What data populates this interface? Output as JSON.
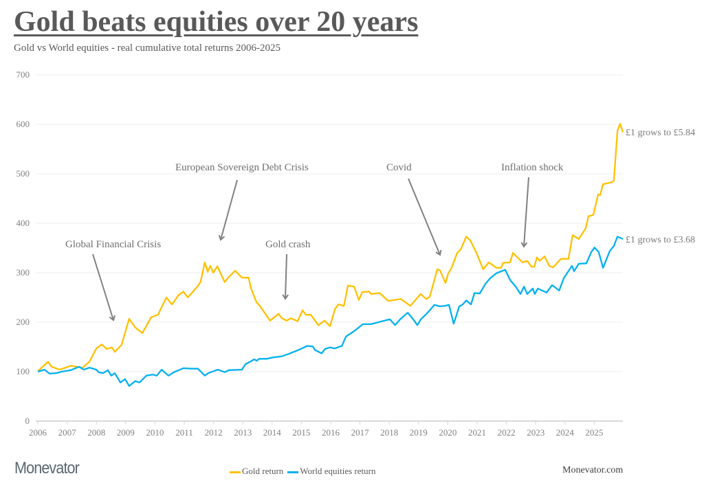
{
  "header": {
    "title": "Gold beats equities over 20 years",
    "subtitle": "Gold vs World equities - real cumulative total returns 2006-2025"
  },
  "footer": {
    "logo": "Monevator",
    "site": "Monevator.com"
  },
  "chart_data": {
    "type": "line",
    "title": "Gold beats equities over 20 years",
    "subtitle": "Gold vs World equities - real cumulative total returns 2006-2025",
    "xlabel": "",
    "ylabel": "",
    "xlim": [
      2006,
      2026
    ],
    "ylim": [
      0,
      700
    ],
    "x_ticks": [
      "2006",
      "2007",
      "2008",
      "2009",
      "2010",
      "2011",
      "2012",
      "2013",
      "2014",
      "2015",
      "2016",
      "2017",
      "2018",
      "2019",
      "2020",
      "2021",
      "2022",
      "2023",
      "2024",
      "2025"
    ],
    "y_ticks": [
      "0",
      "100",
      "200",
      "300",
      "400",
      "500",
      "600",
      "700"
    ],
    "grid": "horizontal",
    "legend_position": "bottom",
    "series": [
      {
        "name": "Gold return",
        "color": "#FFC000",
        "end_label": "£1 grows to £5.84",
        "points": [
          [
            2006.0,
            101
          ],
          [
            2006.35,
            120
          ],
          [
            2006.47,
            110
          ],
          [
            2006.75,
            104
          ],
          [
            2007.13,
            112
          ],
          [
            2007.53,
            108
          ],
          [
            2007.76,
            120
          ],
          [
            2008.0,
            147
          ],
          [
            2008.18,
            155
          ],
          [
            2008.35,
            146
          ],
          [
            2008.53,
            149
          ],
          [
            2008.63,
            140
          ],
          [
            2008.86,
            154
          ],
          [
            2009.12,
            207
          ],
          [
            2009.33,
            189
          ],
          [
            2009.57,
            178
          ],
          [
            2009.87,
            210
          ],
          [
            2010.1,
            215
          ],
          [
            2010.39,
            250
          ],
          [
            2010.58,
            236
          ],
          [
            2010.81,
            255
          ],
          [
            2010.97,
            262
          ],
          [
            2011.12,
            250
          ],
          [
            2011.45,
            272
          ],
          [
            2011.56,
            282
          ],
          [
            2011.7,
            321
          ],
          [
            2011.8,
            302
          ],
          [
            2011.89,
            314
          ],
          [
            2011.99,
            300
          ],
          [
            2012.13,
            313
          ],
          [
            2012.38,
            281
          ],
          [
            2012.5,
            290
          ],
          [
            2012.74,
            304
          ],
          [
            2012.97,
            290
          ],
          [
            2013.2,
            290
          ],
          [
            2013.28,
            268
          ],
          [
            2013.47,
            240
          ],
          [
            2013.58,
            233
          ],
          [
            2013.93,
            203
          ],
          [
            2014.22,
            217
          ],
          [
            2014.33,
            208
          ],
          [
            2014.5,
            203
          ],
          [
            2014.64,
            208
          ],
          [
            2014.87,
            202
          ],
          [
            2015.04,
            224
          ],
          [
            2015.15,
            215
          ],
          [
            2015.32,
            215
          ],
          [
            2015.58,
            194
          ],
          [
            2015.79,
            203
          ],
          [
            2015.98,
            192
          ],
          [
            2016.14,
            226
          ],
          [
            2016.26,
            236
          ],
          [
            2016.45,
            233
          ],
          [
            2016.59,
            274
          ],
          [
            2016.8,
            272
          ],
          [
            2016.96,
            245
          ],
          [
            2017.08,
            261
          ],
          [
            2017.31,
            262
          ],
          [
            2017.38,
            257
          ],
          [
            2017.67,
            259
          ],
          [
            2017.97,
            243
          ],
          [
            2018.39,
            247
          ],
          [
            2018.72,
            233
          ],
          [
            2019.07,
            257
          ],
          [
            2019.26,
            247
          ],
          [
            2019.38,
            251
          ],
          [
            2019.64,
            307
          ],
          [
            2019.73,
            305
          ],
          [
            2019.92,
            279
          ],
          [
            2020.01,
            298
          ],
          [
            2020.13,
            310
          ],
          [
            2020.32,
            340
          ],
          [
            2020.44,
            347
          ],
          [
            2020.63,
            373
          ],
          [
            2020.77,
            365
          ],
          [
            2020.98,
            340
          ],
          [
            2021.21,
            307
          ],
          [
            2021.4,
            321
          ],
          [
            2021.66,
            310
          ],
          [
            2021.82,
            310
          ],
          [
            2021.89,
            320
          ],
          [
            2022.13,
            321
          ],
          [
            2022.22,
            340
          ],
          [
            2022.55,
            321
          ],
          [
            2022.71,
            324
          ],
          [
            2022.86,
            312
          ],
          [
            2022.95,
            312
          ],
          [
            2023.04,
            331
          ],
          [
            2023.14,
            324
          ],
          [
            2023.3,
            333
          ],
          [
            2023.46,
            314
          ],
          [
            2023.6,
            311
          ],
          [
            2023.86,
            328
          ],
          [
            2024.12,
            328
          ],
          [
            2024.26,
            376
          ],
          [
            2024.47,
            368
          ],
          [
            2024.71,
            390
          ],
          [
            2024.8,
            414
          ],
          [
            2024.97,
            417
          ],
          [
            2025.13,
            458
          ],
          [
            2025.2,
            457
          ],
          [
            2025.3,
            479
          ],
          [
            2025.6,
            483
          ],
          [
            2025.67,
            486
          ],
          [
            2025.79,
            587
          ],
          [
            2025.88,
            601
          ],
          [
            2025.98,
            584
          ]
        ]
      },
      {
        "name": "World equities return",
        "color": "#00B0F0",
        "end_label": "£1 grows to £3.68",
        "points": [
          [
            2006.0,
            100
          ],
          [
            2006.23,
            104
          ],
          [
            2006.4,
            96
          ],
          [
            2006.63,
            97
          ],
          [
            2006.82,
            100
          ],
          [
            2007.13,
            103
          ],
          [
            2007.41,
            110
          ],
          [
            2007.57,
            104
          ],
          [
            2007.76,
            108
          ],
          [
            2008.0,
            104
          ],
          [
            2008.07,
            99
          ],
          [
            2008.23,
            97
          ],
          [
            2008.39,
            103
          ],
          [
            2008.51,
            92
          ],
          [
            2008.63,
            97
          ],
          [
            2008.82,
            78
          ],
          [
            2008.98,
            85
          ],
          [
            2009.12,
            71
          ],
          [
            2009.33,
            81
          ],
          [
            2009.47,
            78
          ],
          [
            2009.71,
            92
          ],
          [
            2009.92,
            94
          ],
          [
            2010.06,
            92
          ],
          [
            2010.23,
            104
          ],
          [
            2010.46,
            92
          ],
          [
            2010.65,
            99
          ],
          [
            2010.97,
            107
          ],
          [
            2011.28,
            106
          ],
          [
            2011.47,
            106
          ],
          [
            2011.7,
            92
          ],
          [
            2011.82,
            97
          ],
          [
            2012.15,
            104
          ],
          [
            2012.38,
            99
          ],
          [
            2012.53,
            103
          ],
          [
            2012.97,
            104
          ],
          [
            2013.09,
            115
          ],
          [
            2013.28,
            121
          ],
          [
            2013.39,
            125
          ],
          [
            2013.47,
            122
          ],
          [
            2013.56,
            126
          ],
          [
            2013.82,
            126
          ],
          [
            2014.05,
            129
          ],
          [
            2014.33,
            131
          ],
          [
            2014.57,
            136
          ],
          [
            2014.87,
            143
          ],
          [
            2015.2,
            152
          ],
          [
            2015.39,
            151
          ],
          [
            2015.46,
            144
          ],
          [
            2015.69,
            137
          ],
          [
            2015.81,
            146
          ],
          [
            2015.98,
            149
          ],
          [
            2016.14,
            147
          ],
          [
            2016.38,
            152
          ],
          [
            2016.52,
            171
          ],
          [
            2016.8,
            182
          ],
          [
            2017.1,
            196
          ],
          [
            2017.38,
            196
          ],
          [
            2017.69,
            201
          ],
          [
            2018.02,
            206
          ],
          [
            2018.2,
            194
          ],
          [
            2018.39,
            207
          ],
          [
            2018.63,
            219
          ],
          [
            2018.79,
            208
          ],
          [
            2018.96,
            194
          ],
          [
            2019.08,
            206
          ],
          [
            2019.31,
            219
          ],
          [
            2019.54,
            235
          ],
          [
            2019.73,
            232
          ],
          [
            2019.9,
            233
          ],
          [
            2020.04,
            235
          ],
          [
            2020.2,
            197
          ],
          [
            2020.39,
            232
          ],
          [
            2020.51,
            236
          ],
          [
            2020.63,
            244
          ],
          [
            2020.79,
            236
          ],
          [
            2020.91,
            259
          ],
          [
            2021.09,
            258
          ],
          [
            2021.3,
            279
          ],
          [
            2021.45,
            289
          ],
          [
            2021.66,
            299
          ],
          [
            2021.96,
            306
          ],
          [
            2022.13,
            285
          ],
          [
            2022.32,
            272
          ],
          [
            2022.48,
            257
          ],
          [
            2022.6,
            272
          ],
          [
            2022.71,
            257
          ],
          [
            2022.9,
            268
          ],
          [
            2022.97,
            257
          ],
          [
            2023.07,
            268
          ],
          [
            2023.37,
            260
          ],
          [
            2023.56,
            275
          ],
          [
            2023.8,
            264
          ],
          [
            2023.96,
            289
          ],
          [
            2024.24,
            314
          ],
          [
            2024.31,
            303
          ],
          [
            2024.47,
            318
          ],
          [
            2024.73,
            319
          ],
          [
            2024.9,
            342
          ],
          [
            2025.01,
            351
          ],
          [
            2025.15,
            342
          ],
          [
            2025.3,
            310
          ],
          [
            2025.53,
            344
          ],
          [
            2025.67,
            354
          ],
          [
            2025.79,
            373
          ],
          [
            2025.98,
            368
          ]
        ]
      }
    ],
    "annotations": [
      {
        "text": "Global Financial Crisis"
      },
      {
        "text": "European Sovereign Debt Crisis"
      },
      {
        "text": "Gold crash"
      },
      {
        "text": "Covid"
      },
      {
        "text": "Inflation shock"
      }
    ]
  }
}
